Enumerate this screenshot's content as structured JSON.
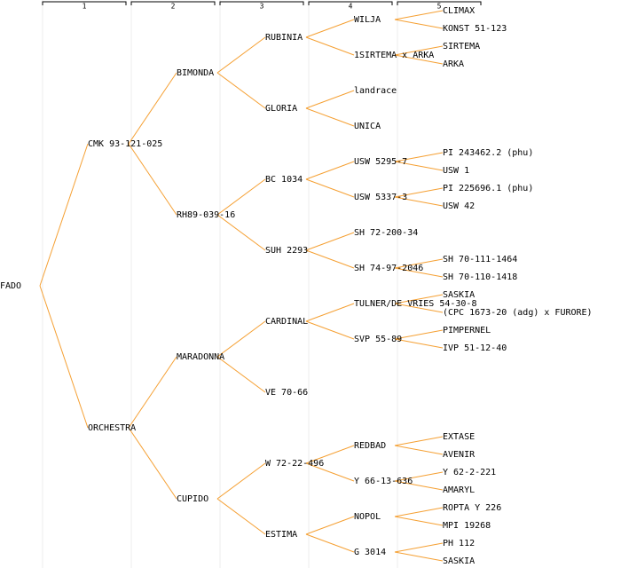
{
  "header": {
    "columns": [
      "1",
      "2",
      "3",
      "4",
      "5"
    ]
  },
  "tree": {
    "label": "FADO",
    "children": [
      {
        "label": "CMK 93-121-025",
        "children": [
          {
            "label": "BIMONDA",
            "children": [
              {
                "label": "RUBINIA",
                "children": [
                  {
                    "label": "WILJA",
                    "children": [
                      {
                        "label": "CLIMAX"
                      },
                      {
                        "label": "KONST 51-123"
                      }
                    ]
                  },
                  {
                    "label": "1SIRTEMA x ARKA",
                    "children": [
                      {
                        "label": "SIRTEMA"
                      },
                      {
                        "label": "ARKA"
                      }
                    ]
                  }
                ]
              },
              {
                "label": "GLORIA",
                "color": "#0000cc",
                "children": [
                  {
                    "label": "landrace"
                  },
                  {
                    "label": "UNICA"
                  }
                ]
              }
            ]
          },
          {
            "label": "RH89-039-16",
            "children": [
              {
                "label": "BC 1034",
                "children": [
                  {
                    "label": "USW 5295-7",
                    "children": [
                      {
                        "label": "PI 243462.2 (phu)"
                      },
                      {
                        "label": "USW 1"
                      }
                    ]
                  },
                  {
                    "label": "USW 5337-3",
                    "children": [
                      {
                        "label": "PI 225696.1 (phu)"
                      },
                      {
                        "label": "USW 42"
                      }
                    ]
                  }
                ]
              },
              {
                "label": "SUH 2293",
                "children": [
                  {
                    "label": "SH 72-200-34"
                  },
                  {
                    "label": "SH 74-97-2046",
                    "children": [
                      {
                        "label": "SH 70-111-1464"
                      },
                      {
                        "label": "SH 70-110-1418"
                      }
                    ]
                  }
                ]
              }
            ]
          }
        ]
      },
      {
        "label": "ORCHESTRA",
        "children": [
          {
            "label": "MARADONNA",
            "children": [
              {
                "label": "CARDINAL",
                "color": "#0000cc",
                "children": [
                  {
                    "label": "TULNER/DE VRIES 54-30-8",
                    "children": [
                      {
                        "label": "SASKIA"
                      },
                      {
                        "label": "(CPC 1673-20 (adg) x FURORE)"
                      }
                    ]
                  },
                  {
                    "label": "SVP 55-89",
                    "children": [
                      {
                        "label": "PIMPERNEL"
                      },
                      {
                        "label": "IVP 51-12-40"
                      }
                    ]
                  }
                ]
              },
              {
                "label": "VE 70-66"
              }
            ]
          },
          {
            "label": "CUPIDO",
            "children": [
              {
                "label": "W 72-22-496",
                "children": [
                  {
                    "label": "REDBAD",
                    "children": [
                      {
                        "label": "EXTASE"
                      },
                      {
                        "label": "AVENIR"
                      }
                    ]
                  },
                  {
                    "label": "Y 66-13-636",
                    "children": [
                      {
                        "label": "Y 62-2-221"
                      },
                      {
                        "label": "AMARYL"
                      }
                    ]
                  }
                ]
              },
              {
                "label": "ESTIMA",
                "children": [
                  {
                    "label": "NOPOL",
                    "children": [
                      {
                        "label": "ROPTA Y 226"
                      },
                      {
                        "label": "MPI 19268"
                      }
                    ]
                  },
                  {
                    "label": "G 3014",
                    "children": [
                      {
                        "label": "PH 112"
                      },
                      {
                        "label": "SASKIA"
                      }
                    ]
                  }
                ]
              }
            ]
          }
        ]
      }
    ]
  }
}
